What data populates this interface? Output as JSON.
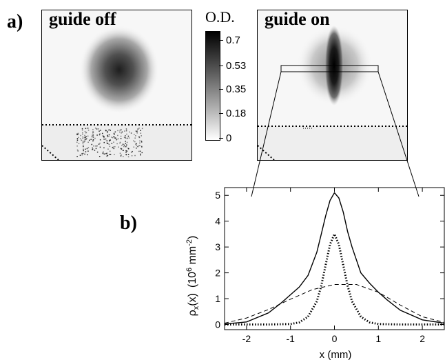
{
  "figure": {
    "panel_a_label": "a)",
    "panel_b_label": "b)",
    "image_left_title": "guide off",
    "image_right_title": "guide on",
    "colorbar": {
      "title": "O.D.",
      "ticks": [
        "0.7",
        "0.53",
        "0.35",
        "0.18",
        "0"
      ]
    }
  },
  "chart_data": {
    "type": "line",
    "xlabel": "x (mm)",
    "ylabel_parts": {
      "rho": "ρ",
      "sub": "x",
      "func": "(x)",
      "unit_open": "(10",
      "exp6": "6",
      "unit_mid": " mm",
      "expm2": "-2",
      "unit_close": ")"
    },
    "xlim": [
      -2.5,
      2.5
    ],
    "ylim": [
      -0.2,
      5.3
    ],
    "x_ticks": [
      -2,
      -1,
      0,
      1,
      2
    ],
    "x_tick_labels": [
      "-2",
      "-1",
      "0",
      "1",
      "2"
    ],
    "y_ticks": [
      0,
      1,
      2,
      3,
      4,
      5
    ],
    "y_tick_labels": [
      "0",
      "1",
      "2",
      "3",
      "4",
      "5"
    ],
    "series": [
      {
        "style": "solid",
        "x": [
          -2.5,
          -2.0,
          -1.5,
          -1.2,
          -1.0,
          -0.8,
          -0.6,
          -0.4,
          -0.3,
          -0.2,
          -0.1,
          0.0,
          0.1,
          0.2,
          0.3,
          0.4,
          0.6,
          0.8,
          1.0,
          1.2,
          1.5,
          2.0,
          2.5
        ],
        "y": [
          0.02,
          0.1,
          0.45,
          0.85,
          1.15,
          1.45,
          1.9,
          2.8,
          3.5,
          4.2,
          4.8,
          5.1,
          4.9,
          4.35,
          3.6,
          3.0,
          2.0,
          1.6,
          1.25,
          0.95,
          0.55,
          0.18,
          0.05
        ]
      },
      {
        "style": "dashed",
        "x": [
          -2.5,
          -2.0,
          -1.5,
          -1.0,
          -0.5,
          0.0,
          0.5,
          1.0,
          1.5,
          2.0,
          2.5
        ],
        "y": [
          0.05,
          0.25,
          0.58,
          0.98,
          1.35,
          1.55,
          1.55,
          1.25,
          0.75,
          0.3,
          0.08
        ]
      },
      {
        "style": "dotted",
        "x": [
          -2.5,
          -1.5,
          -1.0,
          -0.8,
          -0.6,
          -0.4,
          -0.3,
          -0.2,
          -0.1,
          0.0,
          0.1,
          0.2,
          0.3,
          0.4,
          0.6,
          0.8,
          1.0,
          1.5,
          2.5
        ],
        "y": [
          0.0,
          0.0,
          0.02,
          0.08,
          0.3,
          0.9,
          1.5,
          2.3,
          3.1,
          3.5,
          3.1,
          2.3,
          1.5,
          0.9,
          0.3,
          0.08,
          0.02,
          0.0,
          0.0
        ]
      }
    ]
  }
}
